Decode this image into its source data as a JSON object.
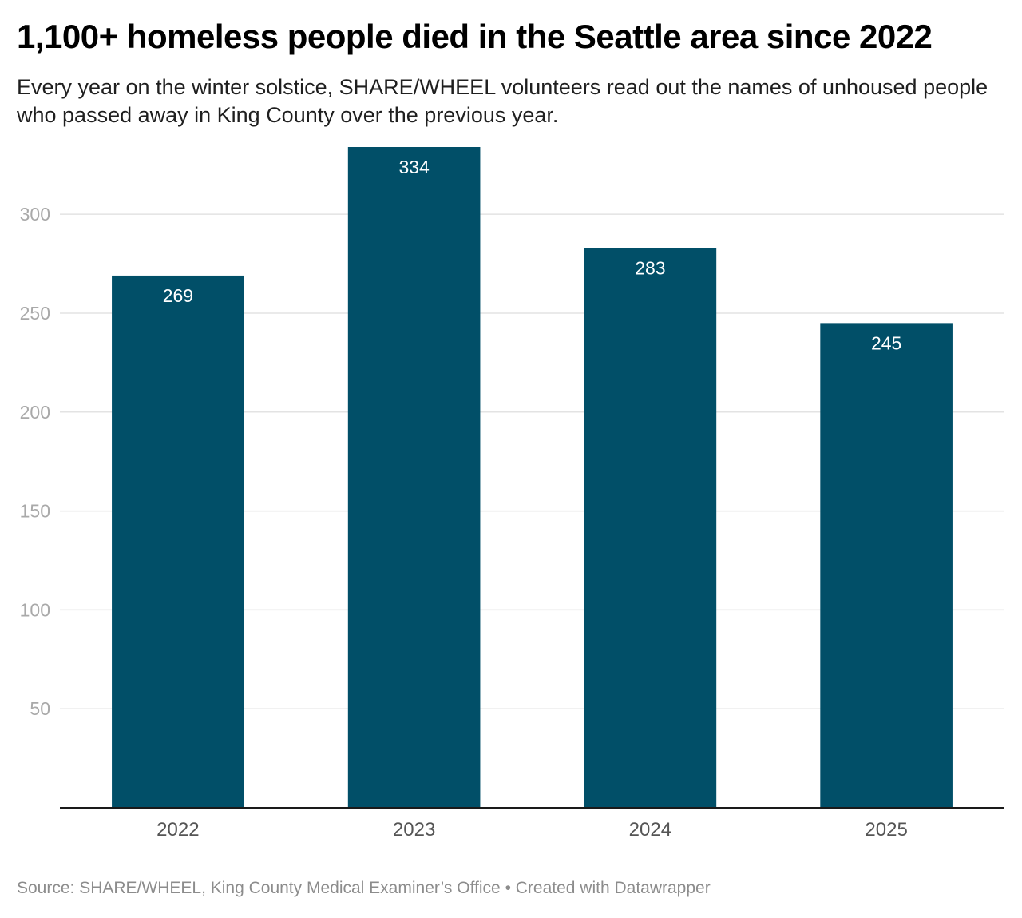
{
  "header": {
    "title": "1,100+ homeless people died in the Seattle area since 2022",
    "subtitle": "Every year on the winter solstice, SHARE/WHEEL volunteers read out the names of unhoused people who passed away in King County over the previous year."
  },
  "footer": {
    "source": "Source: SHARE/WHEEL, King County Medical Examiner’s Office • Created with Datawrapper"
  },
  "colors": {
    "bar": "#014f68",
    "grid": "#e3e3e3",
    "axis": "#1a1a1a"
  },
  "chart_data": {
    "type": "bar",
    "title": "1,100+ homeless people died in the Seattle area since 2022",
    "xlabel": "",
    "ylabel": "",
    "categories": [
      "2022",
      "2023",
      "2024",
      "2025"
    ],
    "values": [
      269,
      334,
      283,
      245
    ],
    "value_labels": [
      "269",
      "334",
      "283",
      "245"
    ],
    "ylim": [
      0,
      334
    ],
    "yticks": [
      50,
      100,
      150,
      200,
      250,
      300
    ],
    "ytick_labels": [
      "50",
      "100",
      "150",
      "200",
      "250",
      "300"
    ],
    "grid": true,
    "legend": "none"
  }
}
